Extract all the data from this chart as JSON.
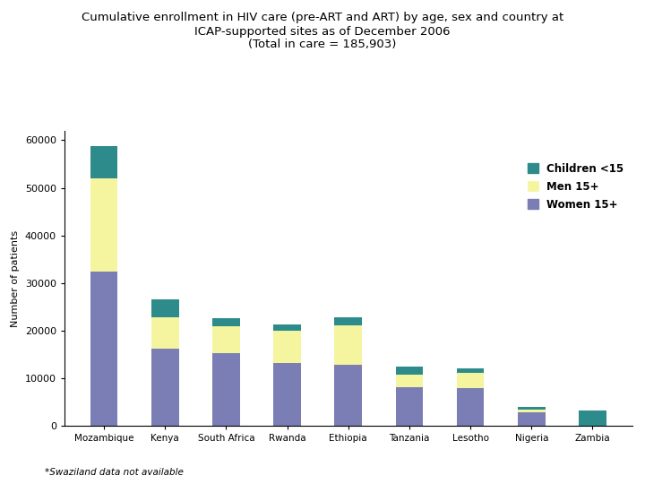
{
  "title_line1": "Cumulative enrollment in HIV care (pre-ART and ART) by age, sex and country at",
  "title_line2": "ICAP-supported sites as of December 2006",
  "title_line3": "(Total in care = 185,903)",
  "ylabel": "Number of patients",
  "countries": [
    "Mozambique",
    "Kenya",
    "South Africa",
    "Rwanda",
    "Ethiopia",
    "Tanzania",
    "Lesotho",
    "Nigeria",
    "Zambia"
  ],
  "women15": [
    32500,
    16200,
    15200,
    13200,
    12800,
    8200,
    7900,
    2800,
    0
  ],
  "men15": [
    19500,
    6600,
    5800,
    6700,
    8300,
    2600,
    3200,
    700,
    0
  ],
  "children": [
    6800,
    3700,
    1700,
    1400,
    1700,
    1700,
    900,
    400,
    3300
  ],
  "color_women": "#7b7db5",
  "color_men": "#f5f5a0",
  "color_children": "#2e8b8b",
  "ylim": [
    0,
    62000
  ],
  "yticks": [
    0,
    10000,
    20000,
    30000,
    40000,
    50000,
    60000
  ],
  "footnote": "*Swaziland data not available",
  "bg_color": "#ffffff"
}
